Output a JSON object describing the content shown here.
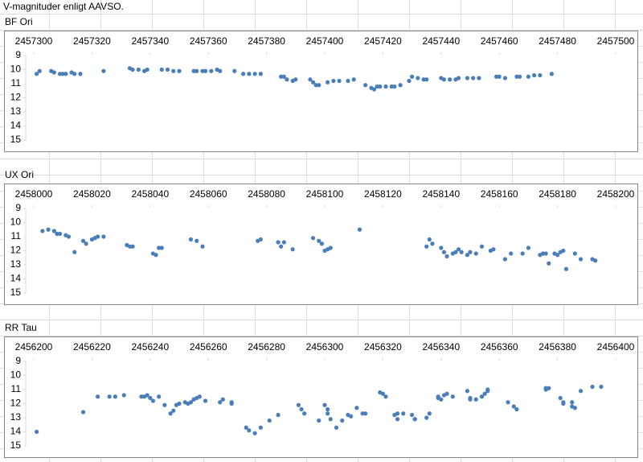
{
  "title": "V-magnituder enligt AAVSO.",
  "chart_data": [
    {
      "type": "scatter",
      "title": "BF Ori",
      "color": "#4a7ebb",
      "yreverse": true,
      "xlim": [
        2457300,
        2457500
      ],
      "xticks": [
        2457300,
        2457320,
        2457340,
        2457360,
        2457380,
        2457400,
        2457420,
        2457440,
        2457460,
        2457480,
        2457500
      ],
      "ylim": [
        9,
        15
      ],
      "yticks": [
        9,
        10,
        11,
        12,
        13,
        14,
        15
      ],
      "x": [
        2457301,
        2457302,
        2457306,
        2457307,
        2457309,
        2457310,
        2457311,
        2457313,
        2457314,
        2457316,
        2457324,
        2457333,
        2457334,
        2457336,
        2457338,
        2457339,
        2457344,
        2457346,
        2457348,
        2457350,
        2457355,
        2457356,
        2457358,
        2457359,
        2457361,
        2457363,
        2457364,
        2457369,
        2457372,
        2457374,
        2457376,
        2457378,
        2457385,
        2457386,
        2457387,
        2457389,
        2457390,
        2457395,
        2457396,
        2457397,
        2457398,
        2457401,
        2457403,
        2457405,
        2457408,
        2457410,
        2457414,
        2457416,
        2457417,
        2457418,
        2457419,
        2457421,
        2457423,
        2457424,
        2457426,
        2457429,
        2457430,
        2457432,
        2457434,
        2457435,
        2457440,
        2457441,
        2457443,
        2457445,
        2457446,
        2457449,
        2457451,
        2457453,
        2457459,
        2457460,
        2457462,
        2457466,
        2457467,
        2457470,
        2457472,
        2457474,
        2457478
      ],
      "values": [
        10.3,
        10.1,
        10.1,
        10.2,
        10.3,
        10.3,
        10.3,
        10.2,
        10.3,
        10.3,
        10.1,
        9.9,
        10.0,
        10.0,
        10.1,
        10.0,
        10.0,
        10.0,
        10.1,
        10.1,
        10.1,
        10.1,
        10.1,
        10.1,
        10.1,
        10.0,
        10.1,
        10.1,
        10.3,
        10.3,
        10.3,
        10.3,
        10.5,
        10.5,
        10.7,
        10.8,
        10.7,
        10.7,
        10.9,
        11.1,
        11.1,
        10.9,
        10.8,
        10.8,
        10.8,
        10.7,
        11.1,
        11.3,
        11.4,
        11.2,
        11.2,
        11.2,
        11.2,
        11.2,
        11.1,
        10.8,
        10.5,
        10.6,
        10.7,
        10.7,
        10.6,
        10.7,
        10.7,
        10.7,
        10.6,
        10.6,
        10.6,
        10.6,
        10.5,
        10.5,
        10.6,
        10.5,
        10.5,
        10.5,
        10.4,
        10.4,
        10.3
      ]
    },
    {
      "type": "scatter",
      "title": "UX Ori",
      "color": "#4a7ebb",
      "yreverse": true,
      "xlim": [
        2458000,
        2458200
      ],
      "xticks": [
        2458000,
        2458020,
        2458040,
        2458060,
        2458080,
        2458100,
        2458120,
        2458140,
        2458160,
        2458180,
        2458200
      ],
      "ylim": [
        9,
        15
      ],
      "yticks": [
        9,
        10,
        11,
        12,
        13,
        14,
        15
      ],
      "x": [
        2458003,
        2458005,
        2458007,
        2458008,
        2458009,
        2458011,
        2458012,
        2458014,
        2458017,
        2458018,
        2458020,
        2458021,
        2458022,
        2458024,
        2458032,
        2458033,
        2458034,
        2458041,
        2458042,
        2458043,
        2458044,
        2458054,
        2458056,
        2458058,
        2458077,
        2458078,
        2458084,
        2458085,
        2458086,
        2458089,
        2458096,
        2458098,
        2458099,
        2458100,
        2458101,
        2458102,
        2458112,
        2458135,
        2458136,
        2458137,
        2458140,
        2458141,
        2458142,
        2458144,
        2458145,
        2458146,
        2458147,
        2458149,
        2458150,
        2458152,
        2458154,
        2458157,
        2458158,
        2458162,
        2458164,
        2458168,
        2458170,
        2458174,
        2458175,
        2458176,
        2458177,
        2458179,
        2458180,
        2458181,
        2458182,
        2458183,
        2458186,
        2458188,
        2458192,
        2458193
      ],
      "values": [
        10.6,
        10.5,
        10.6,
        10.8,
        10.8,
        10.9,
        11.0,
        12.1,
        11.3,
        11.5,
        11.2,
        11.1,
        11.0,
        11.0,
        11.6,
        11.7,
        11.7,
        12.2,
        12.3,
        11.8,
        11.8,
        11.2,
        11.3,
        11.7,
        11.3,
        11.2,
        11.4,
        11.7,
        11.4,
        11.9,
        11.1,
        11.3,
        11.5,
        12.0,
        11.9,
        11.8,
        10.5,
        11.7,
        11.2,
        11.5,
        11.8,
        12.1,
        12.4,
        12.2,
        12.1,
        11.9,
        12.1,
        12.3,
        12.1,
        12.2,
        11.7,
        12.0,
        11.9,
        12.6,
        12.2,
        12.2,
        11.8,
        12.3,
        12.2,
        12.2,
        12.9,
        12.2,
        12.3,
        12.1,
        12.0,
        13.3,
        12.2,
        12.6,
        12.6,
        12.7
      ]
    },
    {
      "type": "scatter",
      "title": "RR Tau",
      "color": "#4a7ebb",
      "yreverse": true,
      "xlim": [
        2456200,
        2456400
      ],
      "xticks": [
        2456200,
        2456220,
        2456240,
        2456260,
        2456280,
        2456300,
        2456320,
        2456340,
        2456360,
        2456380,
        2456400
      ],
      "ylim": [
        9,
        15
      ],
      "yticks": [
        9,
        10,
        11,
        12,
        13,
        14,
        15
      ],
      "x": [
        2456201,
        2456217,
        2456222,
        2456226,
        2456228,
        2456231,
        2456237,
        2456238,
        2456239,
        2456240,
        2456241,
        2456243,
        2456245,
        2456247,
        2456248,
        2456249,
        2456250,
        2456252,
        2456253,
        2456254,
        2456255,
        2456256,
        2456257,
        2456259,
        2456264,
        2456265,
        2456268,
        2456268,
        2456273,
        2456274,
        2456276,
        2456278,
        2456281,
        2456284,
        2456291,
        2456292,
        2456293,
        2456298,
        2456300,
        2456301,
        2456301,
        2456302,
        2456304,
        2456306,
        2456308,
        2456309,
        2456311,
        2456313,
        2456314,
        2456319,
        2456320,
        2456321,
        2456324,
        2456325,
        2456325,
        2456327,
        2456330,
        2456331,
        2456331,
        2456335,
        2456336,
        2456339,
        2456339,
        2456340,
        2456341,
        2456342,
        2456344,
        2456349,
        2456350,
        2456350,
        2456352,
        2456354,
        2456355,
        2456356,
        2456356,
        2456363,
        2456365,
        2456366,
        2456376,
        2456376,
        2456377,
        2456381,
        2456382,
        2456382,
        2456385,
        2456385,
        2456386,
        2456388,
        2456392,
        2456395
      ],
      "values": [
        14.0,
        12.6,
        11.5,
        11.5,
        11.5,
        11.4,
        11.5,
        11.5,
        11.4,
        11.6,
        11.8,
        11.5,
        12.1,
        12.7,
        12.5,
        12.1,
        12.0,
        11.9,
        12.0,
        11.9,
        11.7,
        11.6,
        11.5,
        11.8,
        11.9,
        11.7,
        12.0,
        11.9,
        13.7,
        13.9,
        14.1,
        13.7,
        13.2,
        12.8,
        12.1,
        12.4,
        12.7,
        13.2,
        12.1,
        12.4,
        12.7,
        13.1,
        13.7,
        13.2,
        12.8,
        12.9,
        12.3,
        12.7,
        12.7,
        11.2,
        11.3,
        11.5,
        12.8,
        13.1,
        12.7,
        12.7,
        12.8,
        13.1,
        13.1,
        13.0,
        12.7,
        11.6,
        11.5,
        11.7,
        11.4,
        11.3,
        11.5,
        11.1,
        11.7,
        11.6,
        11.7,
        11.5,
        11.3,
        11.1,
        11.0,
        11.9,
        12.2,
        12.4,
        11.0,
        10.9,
        10.9,
        11.6,
        11.9,
        12.0,
        11.9,
        12.2,
        12.3,
        11.1,
        10.8,
        10.8
      ]
    }
  ]
}
